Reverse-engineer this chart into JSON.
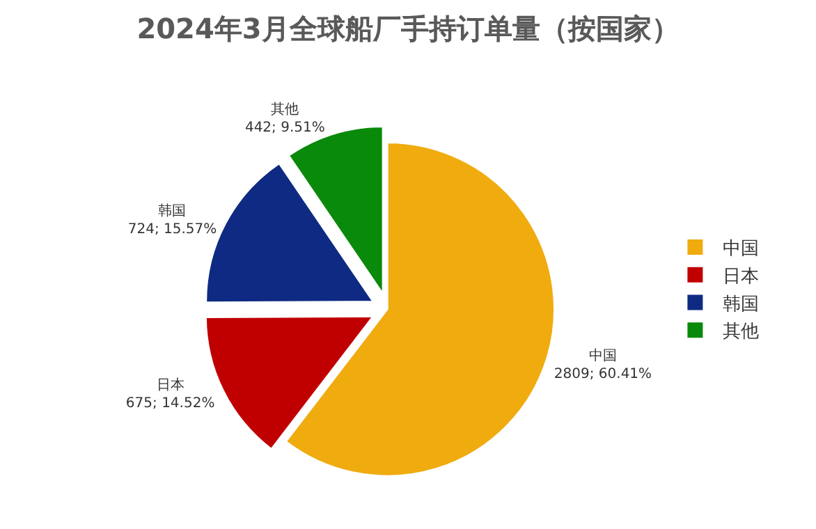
{
  "chart_data": {
    "type": "pie",
    "title": "2024年3月全球船厂手持订单量（按国家）",
    "categories": [
      "中国",
      "日本",
      "韩国",
      "其他"
    ],
    "values": [
      2809,
      675,
      724,
      442
    ],
    "value_labels": [
      "2809; 60.41%",
      "675; 14.52%",
      "724; 15.57%",
      "442; 9.51%"
    ],
    "colors": [
      "#f0ab0f",
      "#c00000",
      "#0e2a82",
      "#0a8a0a"
    ],
    "legend": "right"
  }
}
